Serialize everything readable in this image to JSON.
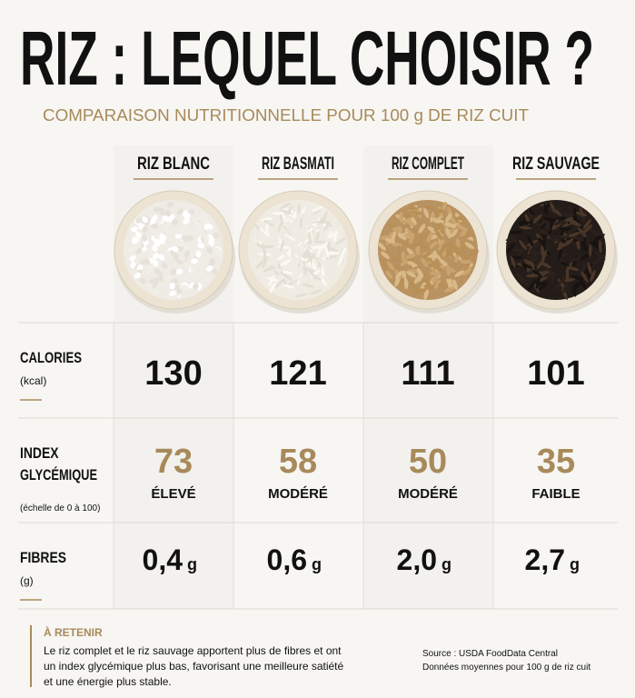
{
  "header": {
    "title": "RIZ : LEQUEL CHOISIR ?",
    "subtitle": "COMPARAISON NUTRITIONNELLE POUR 100 g DE RIZ CUIT"
  },
  "table": {
    "columns": [
      "RIZ BLANC",
      "RIZ BASMATI",
      "RIZ COMPLET",
      "RIZ SAUVAGE"
    ],
    "rows": [
      {
        "label": [
          "CALORIES"
        ],
        "unit": "(kcal)",
        "values": [
          130,
          121,
          111,
          101
        ]
      },
      {
        "label": [
          "INDEX",
          "GLYCÉMIQUE"
        ],
        "unit": "(échelle de 0 à 100)",
        "values": [
          73,
          58,
          50,
          35
        ],
        "levels": [
          "ÉLEVÉ",
          "MODÉRÉ",
          "MODÉRÉ",
          "FAIBLE"
        ]
      },
      {
        "label": [
          "FIBRES"
        ],
        "unit": "(g)",
        "values": [
          "0,4",
          "0,6",
          "2,0",
          "2,7"
        ],
        "value_unit": "g"
      }
    ]
  },
  "note": {
    "title": "À RETENIR",
    "lines": [
      "Le riz complet et le riz sauvage apportent plus de fibres et ont",
      "un index glycémique plus bas, favorisant une meilleure satiété",
      "et une énergie plus stable."
    ]
  },
  "source": {
    "lines": [
      "Source : USDA FoodData Central",
      "Données moyennes pour 100 g de riz cuit"
    ]
  }
}
